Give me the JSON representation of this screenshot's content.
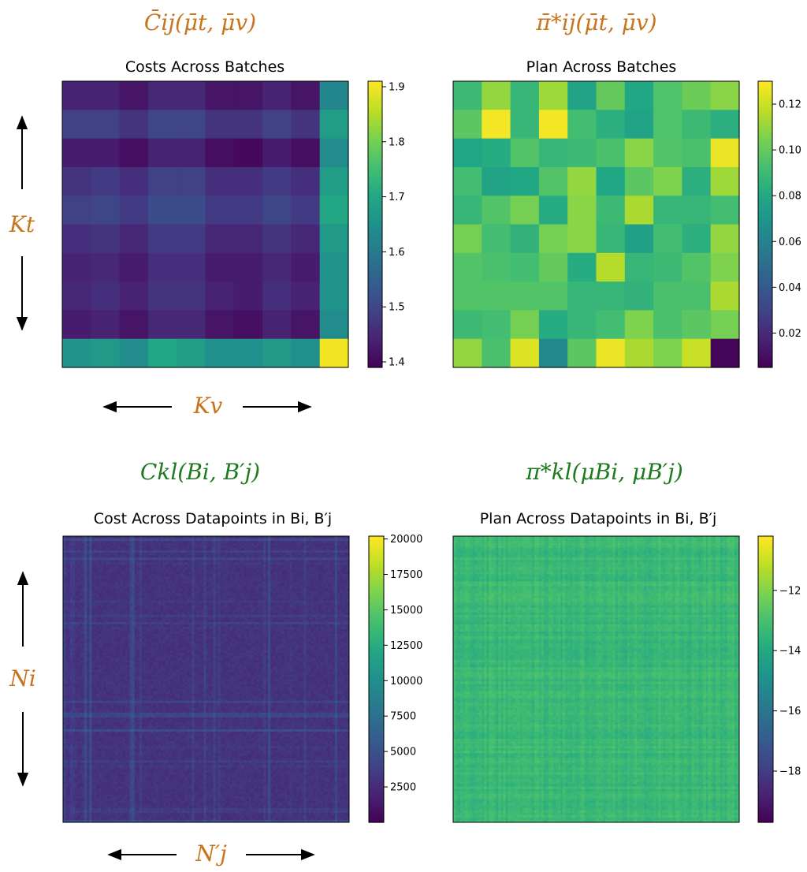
{
  "headers": {
    "top_left": "C̄ij(μ̄t, μ̄v)",
    "top_right": "π̄*ij(μ̄t, μ̄v)",
    "bottom_left": "Ckl(Bi, B′j)",
    "bottom_right": "π*kl(μBi, μB′j)"
  },
  "arrows": {
    "top_vertical": "Kt",
    "top_horizontal": "Kv",
    "bottom_vertical": "Ni",
    "bottom_horizontal": "N′j"
  },
  "chart_data": [
    {
      "type": "heatmap",
      "title": "Costs Across Batches",
      "colormap": "viridis",
      "vmin": 1.39,
      "vmax": 1.91,
      "colorbar_ticks": [
        1.4,
        1.5,
        1.6,
        1.7,
        1.8,
        1.9
      ],
      "colorbar_tick_labels": [
        "1.4",
        "1.5",
        "1.6",
        "1.7",
        "1.8",
        "1.9"
      ],
      "matrix": [
        [
          1.44,
          1.44,
          1.42,
          1.45,
          1.45,
          1.42,
          1.42,
          1.44,
          1.42,
          1.63
        ],
        [
          1.49,
          1.49,
          1.47,
          1.5,
          1.5,
          1.47,
          1.47,
          1.49,
          1.47,
          1.68
        ],
        [
          1.43,
          1.43,
          1.41,
          1.44,
          1.44,
          1.41,
          1.4,
          1.43,
          1.41,
          1.64
        ],
        [
          1.47,
          1.48,
          1.46,
          1.49,
          1.49,
          1.46,
          1.46,
          1.48,
          1.46,
          1.68
        ],
        [
          1.49,
          1.5,
          1.48,
          1.51,
          1.51,
          1.48,
          1.48,
          1.5,
          1.48,
          1.7
        ],
        [
          1.46,
          1.47,
          1.45,
          1.48,
          1.48,
          1.45,
          1.45,
          1.47,
          1.45,
          1.67
        ],
        [
          1.44,
          1.45,
          1.43,
          1.46,
          1.46,
          1.43,
          1.43,
          1.45,
          1.43,
          1.66
        ],
        [
          1.45,
          1.46,
          1.44,
          1.47,
          1.47,
          1.44,
          1.43,
          1.46,
          1.44,
          1.66
        ],
        [
          1.43,
          1.44,
          1.42,
          1.45,
          1.45,
          1.42,
          1.41,
          1.44,
          1.42,
          1.64
        ],
        [
          1.66,
          1.67,
          1.64,
          1.7,
          1.68,
          1.65,
          1.65,
          1.67,
          1.65,
          1.9
        ]
      ]
    },
    {
      "type": "heatmap",
      "title": "Plan Across Batches",
      "colormap": "viridis",
      "vmin": 0.005,
      "vmax": 0.13,
      "colorbar_ticks": [
        0.02,
        0.04,
        0.06,
        0.08,
        0.1,
        0.12
      ],
      "colorbar_tick_labels": [
        "0.02",
        "0.04",
        "0.06",
        "0.08",
        "0.10",
        "0.12"
      ],
      "matrix": [
        [
          0.09,
          0.11,
          0.088,
          0.112,
          0.078,
          0.1,
          0.08,
          0.095,
          0.102,
          0.108
        ],
        [
          0.098,
          0.128,
          0.088,
          0.128,
          0.092,
          0.084,
          0.078,
          0.095,
          0.09,
          0.084
        ],
        [
          0.08,
          0.082,
          0.096,
          0.088,
          0.09,
          0.094,
          0.108,
          0.096,
          0.094,
          0.126
        ],
        [
          0.092,
          0.078,
          0.08,
          0.096,
          0.11,
          0.08,
          0.098,
          0.106,
          0.084,
          0.112
        ],
        [
          0.088,
          0.096,
          0.104,
          0.082,
          0.108,
          0.09,
          0.114,
          0.088,
          0.088,
          0.092
        ],
        [
          0.104,
          0.092,
          0.086,
          0.104,
          0.108,
          0.088,
          0.076,
          0.092,
          0.084,
          0.11
        ],
        [
          0.096,
          0.094,
          0.092,
          0.1,
          0.082,
          0.116,
          0.088,
          0.09,
          0.096,
          0.106
        ],
        [
          0.096,
          0.096,
          0.096,
          0.096,
          0.088,
          0.088,
          0.086,
          0.094,
          0.094,
          0.114
        ],
        [
          0.09,
          0.092,
          0.104,
          0.082,
          0.088,
          0.092,
          0.106,
          0.094,
          0.098,
          0.104
        ],
        [
          0.11,
          0.094,
          0.124,
          0.064,
          0.098,
          0.126,
          0.114,
          0.106,
          0.12,
          0.006
        ]
      ]
    },
    {
      "type": "heatmap",
      "title": "Cost Across Datapoints in Bi, B′j",
      "colormap": "viridis",
      "vmin": 0,
      "vmax": 20200,
      "pattern": "low-values-with-row-column-stripes",
      "grid_size": 120,
      "base_value": 3000,
      "colorbar_ticks": [
        2500,
        5000,
        7500,
        10000,
        12500,
        15000,
        17500,
        20000
      ],
      "colorbar_tick_labels": [
        "2500",
        "5000",
        "7500",
        "10000",
        "12500",
        "15000",
        "17500",
        "20000"
      ]
    },
    {
      "type": "heatmap",
      "title": "Plan Across Datapoints in Bi, B′j",
      "colormap": "viridis",
      "vmin": -19.7,
      "vmax": -10.2,
      "pattern": "near-uniform",
      "grid_size": 120,
      "base_value": -13.3,
      "colorbar_ticks": [
        -18,
        -16,
        -14,
        -12
      ],
      "colorbar_tick_labels": [
        "−18",
        "−16",
        "−14",
        "−12"
      ]
    }
  ]
}
